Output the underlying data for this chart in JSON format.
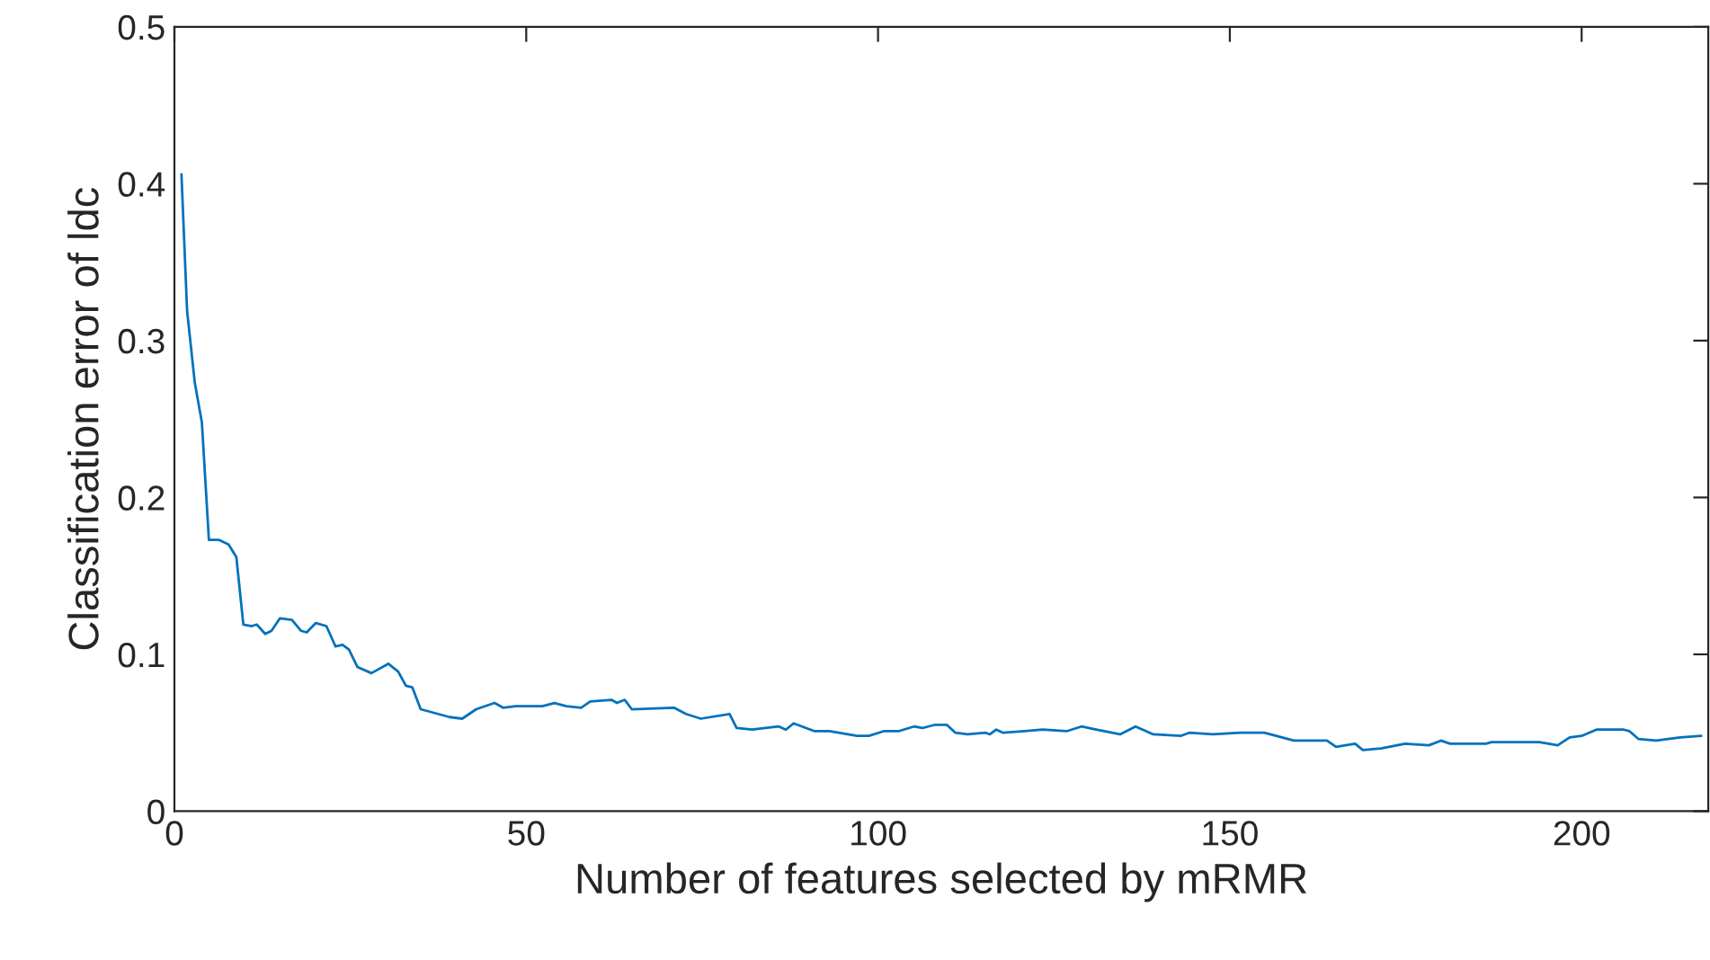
{
  "chart_data": {
    "type": "line",
    "xlabel": "Number of features selected by mRMR",
    "ylabel": "Classification error of ldc",
    "xlim": [
      0,
      218
    ],
    "xticks": [
      0,
      50,
      100,
      150,
      200
    ],
    "ylim": [
      0,
      0.5
    ],
    "yticks": [
      0,
      0.1,
      0.2,
      0.3,
      0.4,
      0.5
    ],
    "grid": false,
    "legend": false,
    "marker": "none",
    "line_style": "solid",
    "series": [
      {
        "color": "#0072bd",
        "x": [
          1.0,
          1.8,
          2.9,
          3.9,
          4.9,
          6.3,
          7.7,
          8.8,
          9.8,
          11,
          11.7,
          12.9,
          13.8,
          15,
          16.7,
          18,
          18.8,
          20.1,
          21.6,
          22.9,
          23.9,
          24.8,
          26,
          28,
          30.4,
          31.8,
          32.9,
          33.8,
          35,
          39.1,
          40.9,
          42.9,
          45.5,
          46.7,
          48.5,
          52.3,
          54,
          55.7,
          57.8,
          59.1,
          62.1,
          62.9,
          64,
          65,
          71,
          72.7,
          74.8,
          78.9,
          79.9,
          82.1,
          85.9,
          86.9,
          88,
          91,
          93.1,
          97,
          98.7,
          100.8,
          102.9,
          105.1,
          106.3,
          108,
          109.8,
          111,
          112.7,
          115.3,
          115.9,
          116.8,
          117.8,
          120.8,
          123.4,
          126.8,
          128.9,
          131,
          134.4,
          136.6,
          139.1,
          143,
          144.2,
          147.6,
          151.5,
          153.2,
          154.9,
          159.1,
          163.8,
          165.1,
          167.8,
          168.9,
          171.5,
          174.9,
          178.3,
          180,
          181.3,
          186.4,
          187.2,
          194,
          196.6,
          198.3,
          200,
          202.1,
          206,
          206.8,
          208.1,
          210.6,
          214,
          217
        ],
        "values": [
          0.406,
          0.319,
          0.273,
          0.248,
          0.173,
          0.173,
          0.17,
          0.162,
          0.119,
          0.118,
          0.119,
          0.113,
          0.115,
          0.123,
          0.122,
          0.115,
          0.114,
          0.12,
          0.118,
          0.105,
          0.106,
          0.103,
          0.092,
          0.088,
          0.094,
          0.089,
          0.08,
          0.079,
          0.065,
          0.06,
          0.059,
          0.065,
          0.069,
          0.066,
          0.067,
          0.067,
          0.069,
          0.067,
          0.066,
          0.07,
          0.071,
          0.069,
          0.071,
          0.065,
          0.066,
          0.062,
          0.059,
          0.062,
          0.053,
          0.052,
          0.054,
          0.052,
          0.056,
          0.051,
          0.051,
          0.048,
          0.048,
          0.051,
          0.051,
          0.054,
          0.053,
          0.055,
          0.055,
          0.05,
          0.049,
          0.05,
          0.049,
          0.052,
          0.05,
          0.051,
          0.052,
          0.051,
          0.054,
          0.052,
          0.049,
          0.054,
          0.049,
          0.048,
          0.05,
          0.049,
          0.05,
          0.05,
          0.05,
          0.045,
          0.045,
          0.041,
          0.043,
          0.039,
          0.04,
          0.043,
          0.042,
          0.045,
          0.043,
          0.043,
          0.044,
          0.044,
          0.042,
          0.047,
          0.048,
          0.052,
          0.052,
          0.051,
          0.046,
          0.045,
          0.047,
          0.048
        ]
      }
    ]
  }
}
